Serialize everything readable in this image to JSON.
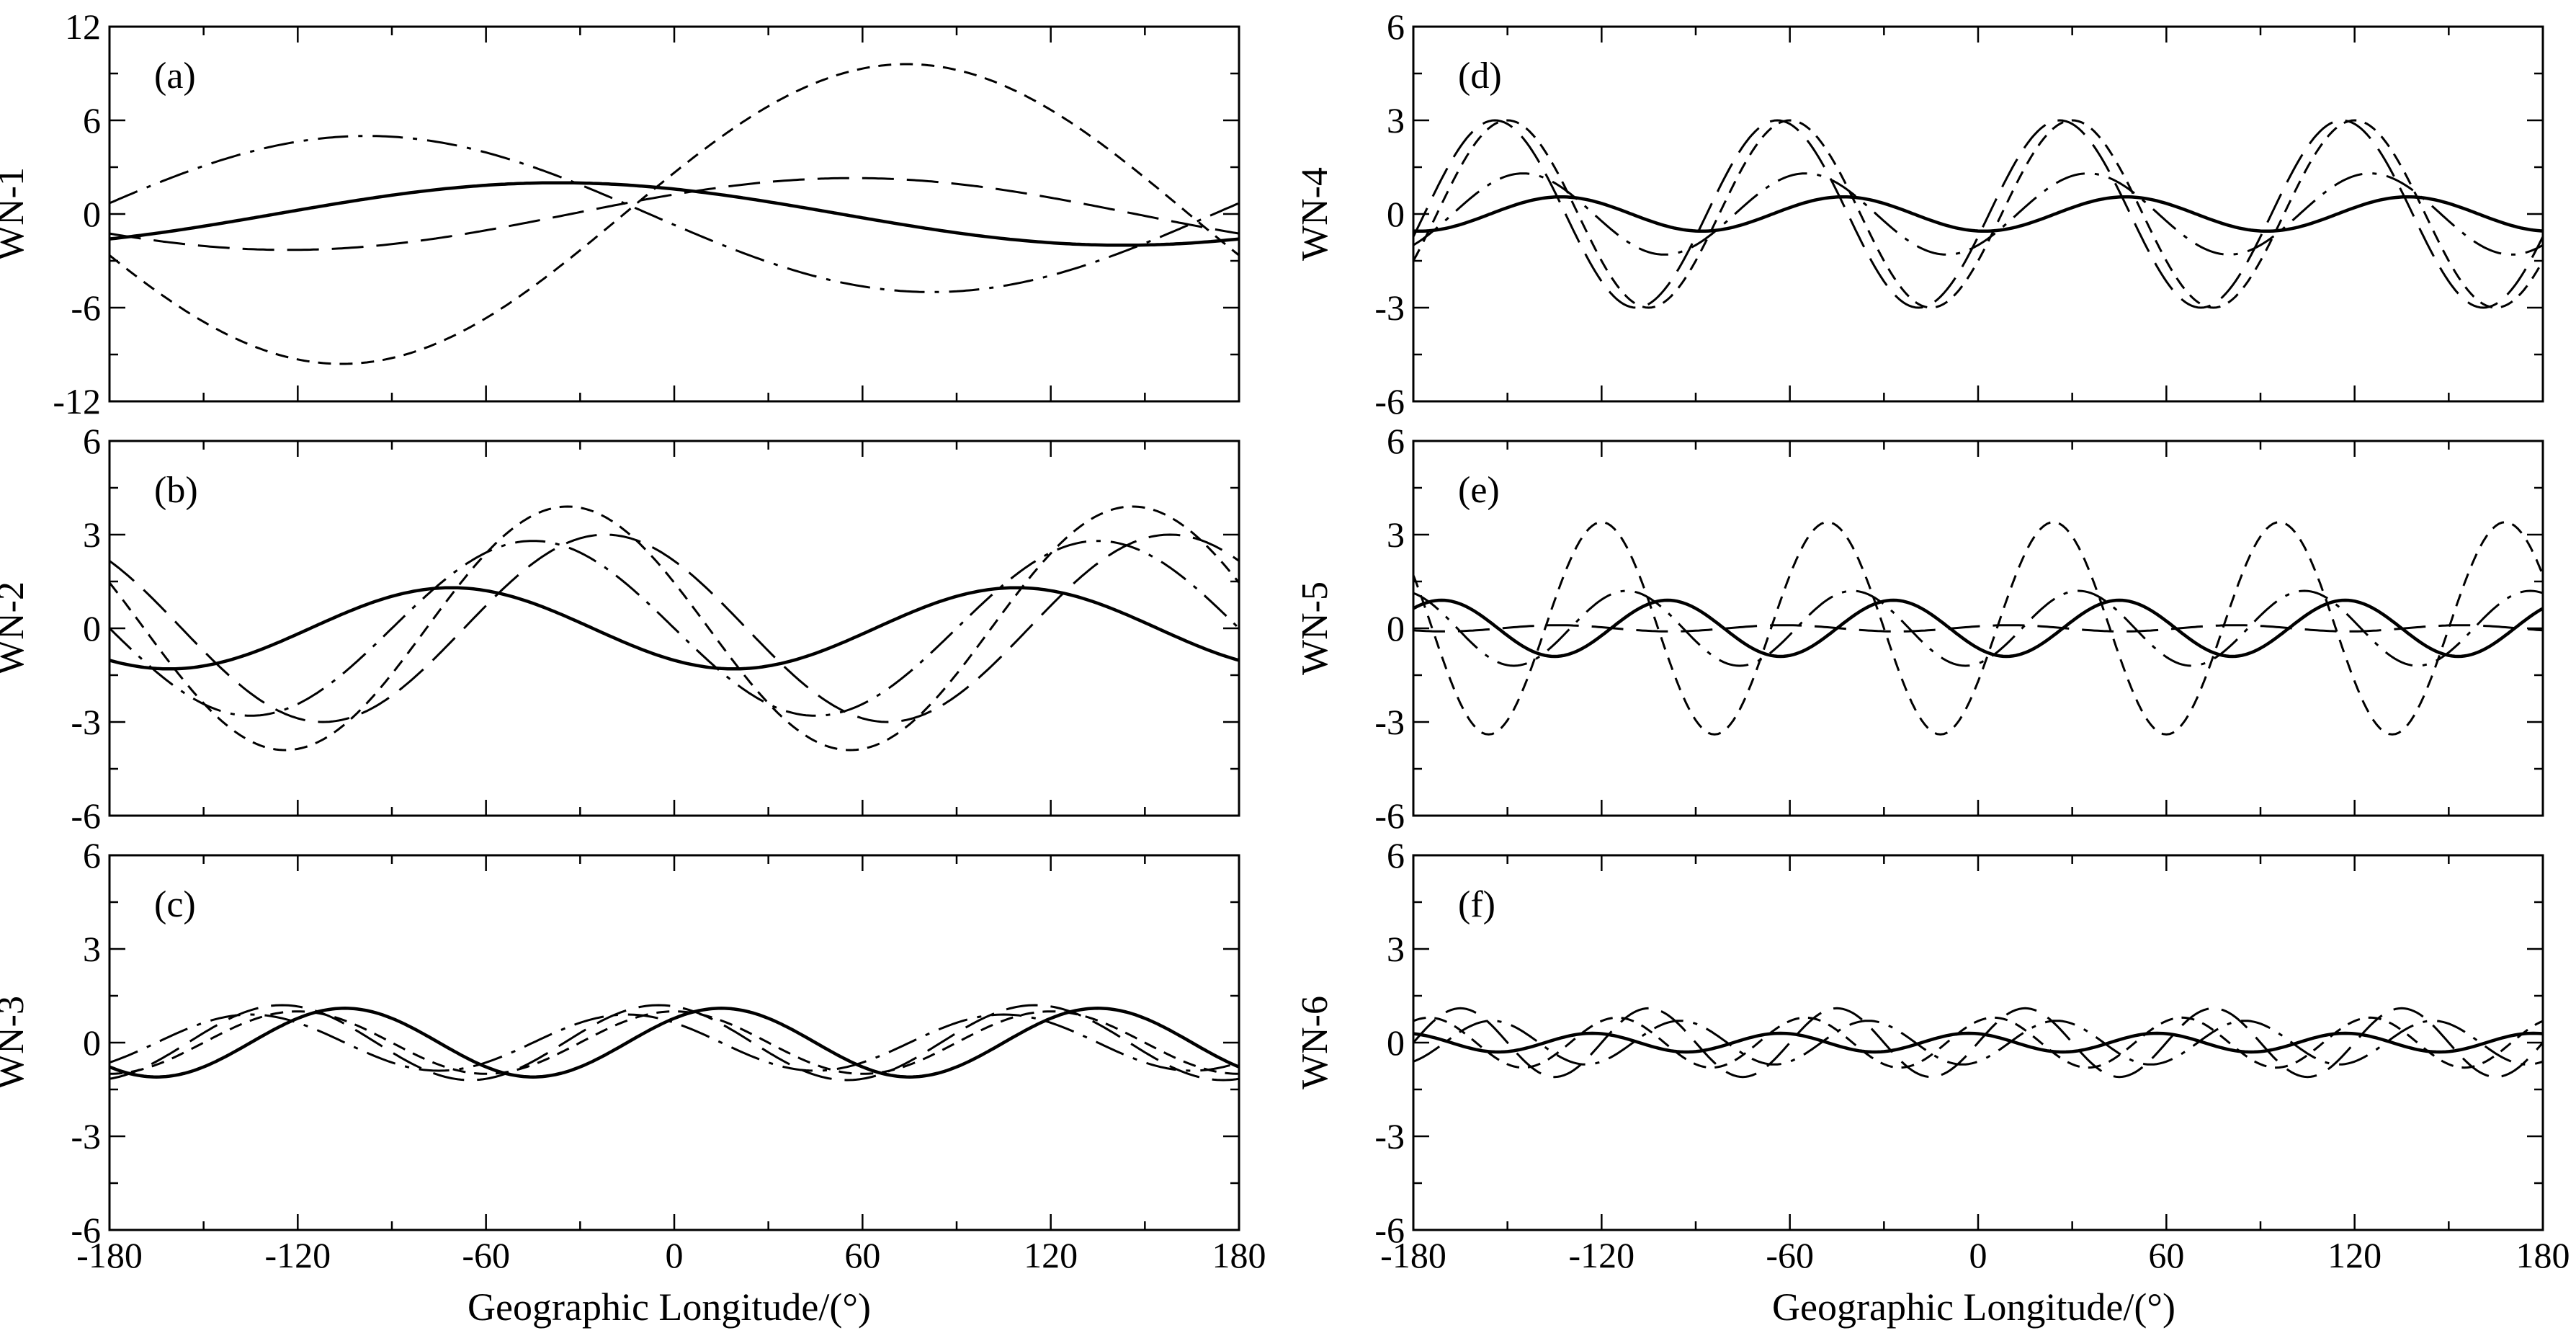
{
  "figure": {
    "x_title_left": "Geographic Longitude/(°)",
    "x_title_right": "Geographic Longitude/(°)"
  },
  "chart_data": [
    {
      "type": "line",
      "panel_label": "(a)",
      "ylabel": "WN-1",
      "xlim": [
        -180,
        180
      ],
      "ylim": [
        -12,
        12
      ],
      "xticks": [
        -180,
        -120,
        -60,
        0,
        60,
        120,
        180
      ],
      "xtick_labels": [
        "-180",
        "-120",
        "-60",
        "0",
        "60",
        "120",
        "180"
      ],
      "yticks": [
        -12,
        -6,
        0,
        6,
        12
      ],
      "ytick_labels": [
        "-12",
        "-6",
        "0",
        "6",
        "12"
      ],
      "wavenumber": 1,
      "series": [
        {
          "name": "solid",
          "style": "solid",
          "amplitude": 2.0,
          "peak_longitude": -37
        },
        {
          "name": "long-dash",
          "style": "long-dash",
          "amplitude": 2.3,
          "peak_longitude": 57
        },
        {
          "name": "short-dash",
          "style": "short-dash",
          "amplitude": 9.6,
          "peak_longitude": 74
        },
        {
          "name": "dash-dot",
          "style": "dash-dot",
          "amplitude": 5.0,
          "peak_longitude": -98
        }
      ]
    },
    {
      "type": "line",
      "panel_label": "(b)",
      "ylabel": "WN-2",
      "xlim": [
        -180,
        180
      ],
      "ylim": [
        -6,
        6
      ],
      "xticks": [
        -180,
        -120,
        -60,
        0,
        60,
        120,
        180
      ],
      "xtick_labels": [
        "-180",
        "-120",
        "-60",
        "0",
        "60",
        "120",
        "180"
      ],
      "yticks": [
        -6,
        -3,
        0,
        3,
        6
      ],
      "ytick_labels": [
        "-6",
        "-3",
        "0",
        "3",
        "6"
      ],
      "wavenumber": 2,
      "series": [
        {
          "name": "solid",
          "style": "solid",
          "amplitude": 1.3,
          "peak_longitude": -71
        },
        {
          "name": "long-dash",
          "style": "long-dash",
          "amplitude": 3.0,
          "peak_longitude": -22
        },
        {
          "name": "short-dash",
          "style": "short-dash",
          "amplitude": 3.9,
          "peak_longitude": -34
        },
        {
          "name": "dash-dot",
          "style": "dash-dot",
          "amplitude": 2.8,
          "peak_longitude": -45
        }
      ]
    },
    {
      "type": "line",
      "panel_label": "(c)",
      "ylabel": "WN-3",
      "xlim": [
        -180,
        180
      ],
      "ylim": [
        -6,
        6
      ],
      "xticks": [
        -180,
        -120,
        -60,
        0,
        60,
        120,
        180
      ],
      "xtick_labels": [
        "-180",
        "-120",
        "-60",
        "0",
        "60",
        "120",
        "180"
      ],
      "yticks": [
        -6,
        -3,
        0,
        3,
        6
      ],
      "ytick_labels": [
        "-6",
        "-3",
        "0",
        "3",
        "6"
      ],
      "wavenumber": 3,
      "series": [
        {
          "name": "solid",
          "style": "solid",
          "amplitude": 1.1,
          "peak_longitude": 15
        },
        {
          "name": "long-dash",
          "style": "long-dash",
          "amplitude": 1.2,
          "peak_longitude": -5
        },
        {
          "name": "short-dash",
          "style": "short-dash",
          "amplitude": 1.0,
          "peak_longitude": 0
        },
        {
          "name": "dash-dot",
          "style": "dash-dot",
          "amplitude": 0.9,
          "peak_longitude": -15
        }
      ]
    },
    {
      "type": "line",
      "panel_label": "(d)",
      "ylabel": "WN-4",
      "xlim": [
        -180,
        180
      ],
      "ylim": [
        -6,
        6
      ],
      "xticks": [
        -180,
        -120,
        -60,
        0,
        60,
        120,
        180
      ],
      "xtick_labels": [
        "-180",
        "-120",
        "-60",
        "0",
        "60",
        "120",
        "180"
      ],
      "yticks": [
        -6,
        -3,
        0,
        3,
        6
      ],
      "ytick_labels": [
        "-6",
        "-3",
        "0",
        "3",
        "6"
      ],
      "wavenumber": 4,
      "series": [
        {
          "name": "solid",
          "style": "solid",
          "amplitude": 0.55,
          "peak_longitude": -43
        },
        {
          "name": "long-dash",
          "style": "long-dash",
          "amplitude": 3.0,
          "peak_longitude": -64
        },
        {
          "name": "short-dash",
          "style": "short-dash",
          "amplitude": 3.0,
          "peak_longitude": -60
        },
        {
          "name": "dash-dot",
          "style": "dash-dot",
          "amplitude": 1.3,
          "peak_longitude": -55
        }
      ]
    },
    {
      "type": "line",
      "panel_label": "(e)",
      "ylabel": "WN-5",
      "xlim": [
        -180,
        180
      ],
      "ylim": [
        -6,
        6
      ],
      "xticks": [
        -180,
        -120,
        -60,
        0,
        60,
        120,
        180
      ],
      "xtick_labels": [
        "-180",
        "-120",
        "-60",
        "0",
        "60",
        "120",
        "180"
      ],
      "yticks": [
        -6,
        -3,
        0,
        3,
        6
      ],
      "ytick_labels": [
        "-6",
        "-3",
        "0",
        "3",
        "6"
      ],
      "wavenumber": 5,
      "series": [
        {
          "name": "solid",
          "style": "solid",
          "amplitude": 0.9,
          "peak_longitude": 45
        },
        {
          "name": "long-dash",
          "style": "long-dash",
          "amplitude": 0.1,
          "peak_longitude": 10
        },
        {
          "name": "short-dash",
          "style": "short-dash",
          "amplitude": 3.4,
          "peak_longitude": 24
        },
        {
          "name": "dash-dot",
          "style": "dash-dot",
          "amplitude": 1.2,
          "peak_longitude": 32
        }
      ]
    },
    {
      "type": "line",
      "panel_label": "(f)",
      "ylabel": "WN-6",
      "xlim": [
        -180,
        180
      ],
      "ylim": [
        -6,
        6
      ],
      "xticks": [
        -180,
        -120,
        -60,
        0,
        60,
        120,
        180
      ],
      "xtick_labels": [
        "-180",
        "-120",
        "-60",
        "0",
        "60",
        "120",
        "180"
      ],
      "yticks": [
        -6,
        -3,
        0,
        3,
        6
      ],
      "ytick_labels": [
        "-6",
        "-3",
        "0",
        "3",
        "6"
      ],
      "wavenumber": 6,
      "series": [
        {
          "name": "solid",
          "style": "solid",
          "amplitude": 0.3,
          "peak_longitude": -3
        },
        {
          "name": "long-dash",
          "style": "long-dash",
          "amplitude": 1.1,
          "peak_longitude": 15
        },
        {
          "name": "short-dash",
          "style": "short-dash",
          "amplitude": 0.8,
          "peak_longitude": 5
        },
        {
          "name": "dash-dot",
          "style": "dash-dot",
          "amplitude": 0.7,
          "peak_longitude": 25
        }
      ]
    }
  ]
}
